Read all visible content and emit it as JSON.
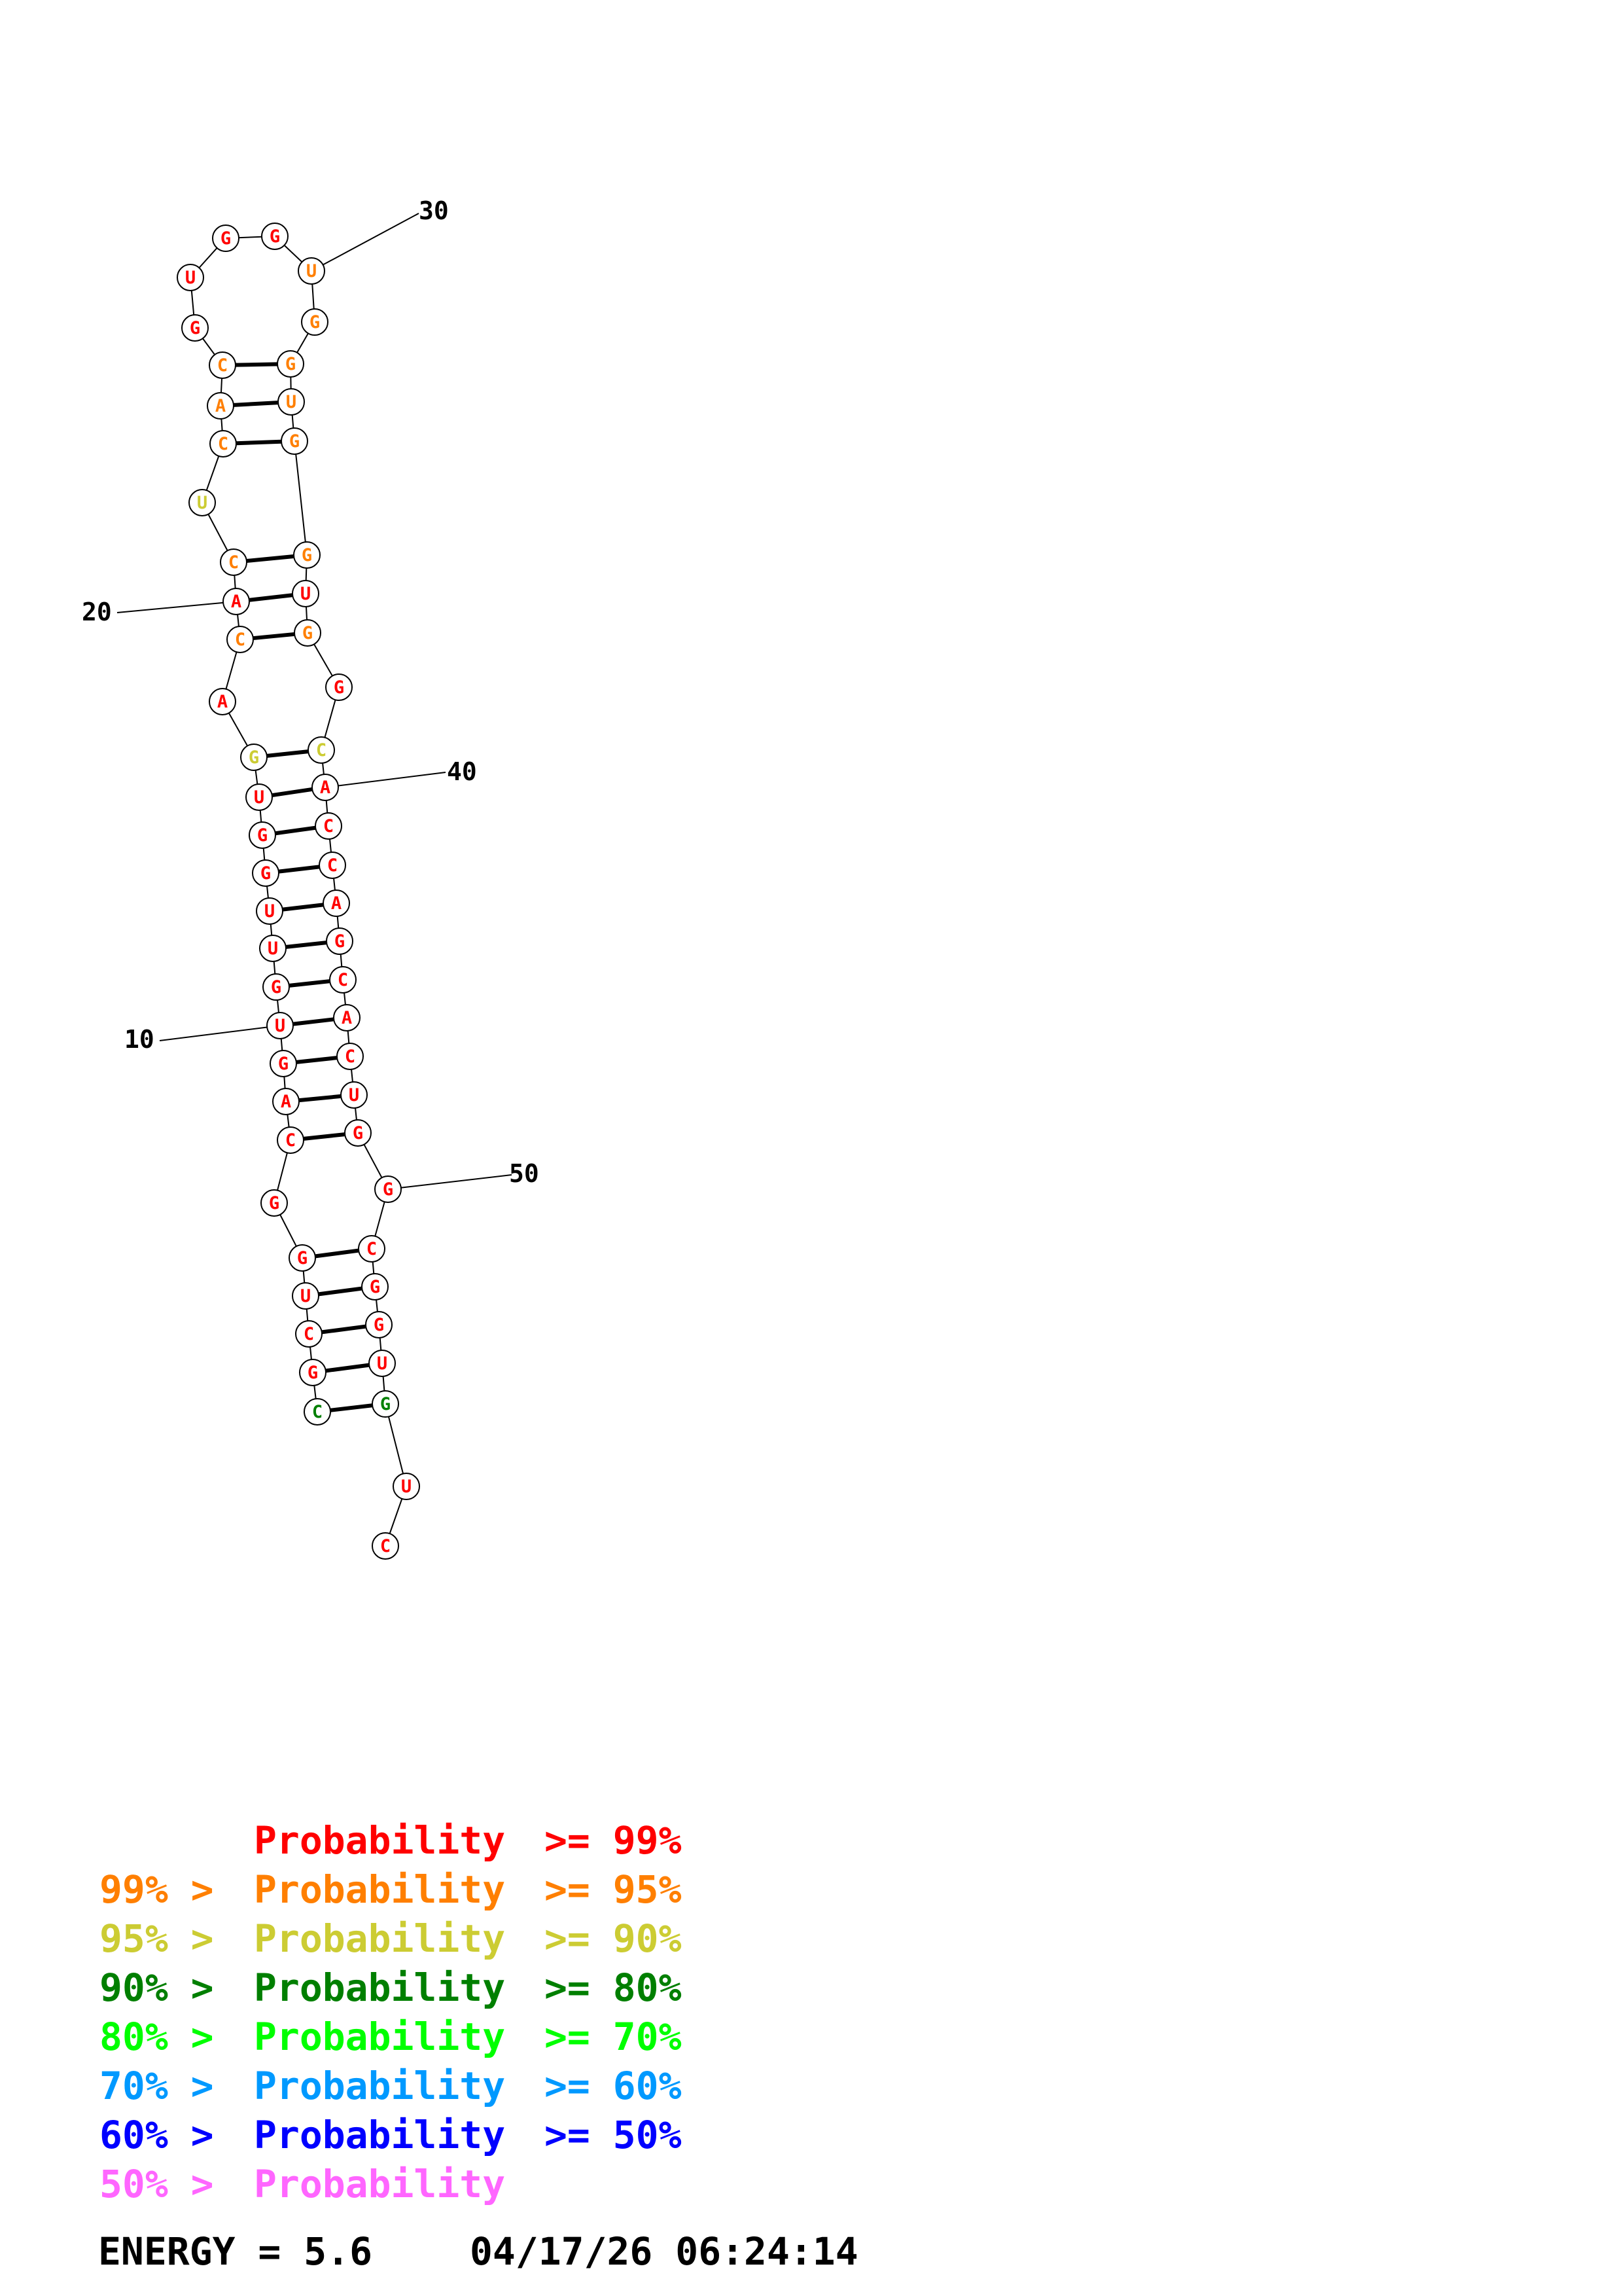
{
  "palette": {
    "p99": "#ff0000",
    "p95": "#ff7f00",
    "p90": "#cccc33",
    "p80": "#007f00",
    "p70": "#00ff00",
    "p60": "#0099ff",
    "p50": "#0000ff",
    "low": "#ff66ff"
  },
  "structure": {
    "sequence": [
      {
        "n": 1,
        "base": "C",
        "p": "p80"
      },
      {
        "n": 2,
        "base": "G",
        "p": "p99"
      },
      {
        "n": 3,
        "base": "C",
        "p": "p99"
      },
      {
        "n": 4,
        "base": "U",
        "p": "p99"
      },
      {
        "n": 5,
        "base": "G",
        "p": "p99"
      },
      {
        "n": 6,
        "base": "G",
        "p": "p99"
      },
      {
        "n": 7,
        "base": "C",
        "p": "p99"
      },
      {
        "n": 8,
        "base": "A",
        "p": "p99"
      },
      {
        "n": 9,
        "base": "G",
        "p": "p99"
      },
      {
        "n": 10,
        "base": "U",
        "p": "p99"
      },
      {
        "n": 11,
        "base": "G",
        "p": "p99"
      },
      {
        "n": 12,
        "base": "U",
        "p": "p99"
      },
      {
        "n": 13,
        "base": "U",
        "p": "p99"
      },
      {
        "n": 14,
        "base": "G",
        "p": "p99"
      },
      {
        "n": 15,
        "base": "G",
        "p": "p99"
      },
      {
        "n": 16,
        "base": "U",
        "p": "p99"
      },
      {
        "n": 17,
        "base": "G",
        "p": "p90"
      },
      {
        "n": 18,
        "base": "A",
        "p": "p99"
      },
      {
        "n": 19,
        "base": "C",
        "p": "p95"
      },
      {
        "n": 20,
        "base": "A",
        "p": "p99"
      },
      {
        "n": 21,
        "base": "C",
        "p": "p95"
      },
      {
        "n": 22,
        "base": "U",
        "p": "p90"
      },
      {
        "n": 23,
        "base": "C",
        "p": "p95"
      },
      {
        "n": 24,
        "base": "A",
        "p": "p95"
      },
      {
        "n": 25,
        "base": "C",
        "p": "p95"
      },
      {
        "n": 26,
        "base": "G",
        "p": "p99"
      },
      {
        "n": 27,
        "base": "U",
        "p": "p99"
      },
      {
        "n": 28,
        "base": "G",
        "p": "p99"
      },
      {
        "n": 29,
        "base": "G",
        "p": "p99"
      },
      {
        "n": 30,
        "base": "U",
        "p": "p95"
      },
      {
        "n": 31,
        "base": "G",
        "p": "p95"
      },
      {
        "n": 32,
        "base": "G",
        "p": "p95"
      },
      {
        "n": 33,
        "base": "U",
        "p": "p95"
      },
      {
        "n": 34,
        "base": "G",
        "p": "p95"
      },
      {
        "n": 35,
        "base": "G",
        "p": "p95"
      },
      {
        "n": 36,
        "base": "U",
        "p": "p99"
      },
      {
        "n": 37,
        "base": "G",
        "p": "p95"
      },
      {
        "n": 38,
        "base": "G",
        "p": "p99"
      },
      {
        "n": 39,
        "base": "C",
        "p": "p90"
      },
      {
        "n": 40,
        "base": "A",
        "p": "p99"
      },
      {
        "n": 41,
        "base": "C",
        "p": "p99"
      },
      {
        "n": 42,
        "base": "C",
        "p": "p99"
      },
      {
        "n": 43,
        "base": "A",
        "p": "p99"
      },
      {
        "n": 44,
        "base": "G",
        "p": "p99"
      },
      {
        "n": 45,
        "base": "C",
        "p": "p99"
      },
      {
        "n": 46,
        "base": "A",
        "p": "p99"
      },
      {
        "n": 47,
        "base": "C",
        "p": "p99"
      },
      {
        "n": 48,
        "base": "U",
        "p": "p99"
      },
      {
        "n": 49,
        "base": "G",
        "p": "p99"
      },
      {
        "n": 50,
        "base": "G",
        "p": "p99"
      },
      {
        "n": 51,
        "base": "C",
        "p": "p99"
      },
      {
        "n": 52,
        "base": "G",
        "p": "p99"
      },
      {
        "n": 53,
        "base": "G",
        "p": "p99"
      },
      {
        "n": 54,
        "base": "U",
        "p": "p99"
      },
      {
        "n": 55,
        "base": "G",
        "p": "p80"
      },
      {
        "n": 56,
        "base": "U",
        "p": "p99"
      },
      {
        "n": 57,
        "base": "C",
        "p": "p99"
      }
    ],
    "pairs": [
      [
        1,
        55
      ],
      [
        2,
        54
      ],
      [
        3,
        53
      ],
      [
        4,
        52
      ],
      [
        5,
        51
      ],
      [
        7,
        49
      ],
      [
        8,
        48
      ],
      [
        9,
        47
      ],
      [
        10,
        46
      ],
      [
        11,
        45
      ],
      [
        12,
        44
      ],
      [
        13,
        43
      ],
      [
        14,
        42
      ],
      [
        15,
        41
      ],
      [
        16,
        40
      ],
      [
        17,
        39
      ],
      [
        19,
        37
      ],
      [
        20,
        36
      ],
      [
        21,
        35
      ],
      [
        23,
        34
      ],
      [
        24,
        33
      ],
      [
        25,
        32
      ]
    ],
    "position_labels": [
      {
        "n": 10,
        "text": "10"
      },
      {
        "n": 20,
        "text": "20"
      },
      {
        "n": 30,
        "text": "30"
      },
      {
        "n": 40,
        "text": "40"
      },
      {
        "n": 50,
        "text": "50"
      }
    ]
  },
  "legend": [
    {
      "prefix": "",
      "label": "Probability",
      "suffix": ">= 99%",
      "color": "p99"
    },
    {
      "prefix": "99% >",
      "label": "Probability",
      "suffix": ">= 95%",
      "color": "p95"
    },
    {
      "prefix": "95% >",
      "label": "Probability",
      "suffix": ">= 90%",
      "color": "p90"
    },
    {
      "prefix": "90% >",
      "label": "Probability",
      "suffix": ">= 80%",
      "color": "p80"
    },
    {
      "prefix": "80% >",
      "label": "Probability",
      "suffix": ">= 70%",
      "color": "p70"
    },
    {
      "prefix": "70% >",
      "label": "Probability",
      "suffix": ">= 60%",
      "color": "p60"
    },
    {
      "prefix": "60% >",
      "label": "Probability",
      "suffix": ">= 50%",
      "color": "p50"
    },
    {
      "prefix": "50% >",
      "label": "Probability",
      "suffix": "",
      "color": "low"
    }
  ],
  "footer": {
    "energy": "ENERGY = 5.6",
    "timestamp": "04/17/26 06:24:14"
  }
}
